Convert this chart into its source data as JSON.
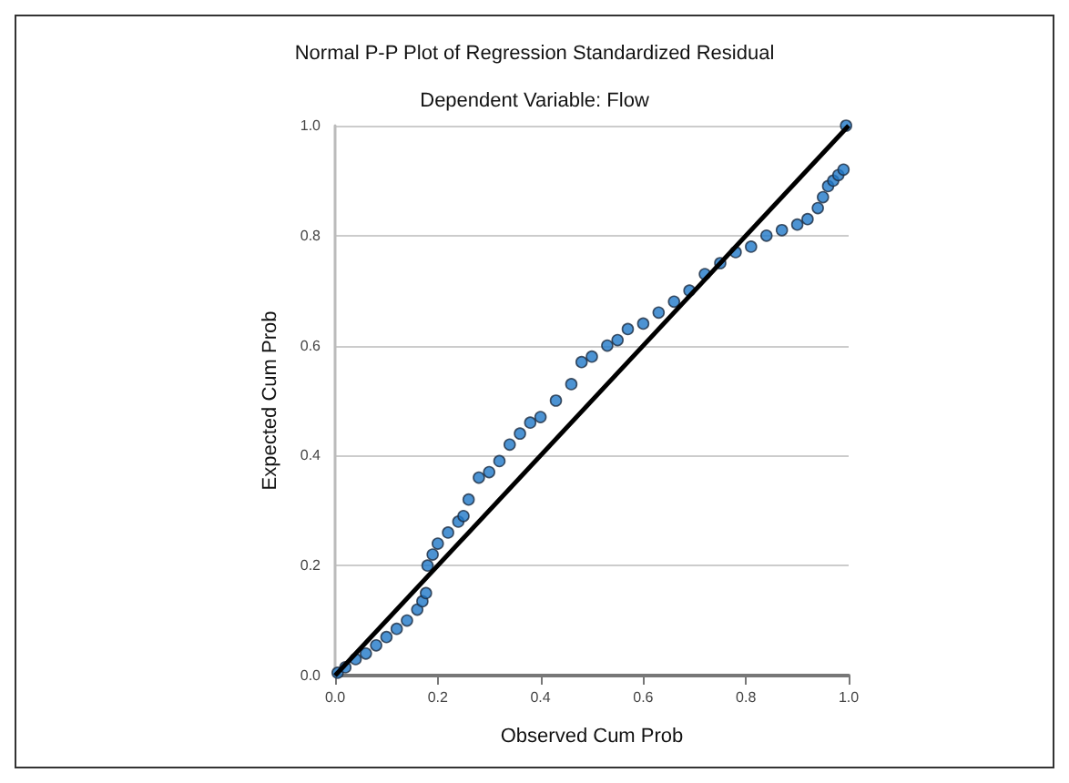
{
  "chart_data": {
    "type": "scatter",
    "title": "Normal P-P Plot of Regression Standardized Residual",
    "subtitle": "Dependent Variable: Flow",
    "xlabel": "Observed Cum Prob",
    "ylabel": "Expected Cum Prob",
    "xlim": [
      0,
      1
    ],
    "ylim": [
      0,
      1
    ],
    "xticks": [
      {
        "value": 0,
        "label": "0.0"
      },
      0.2,
      0.4,
      0.6,
      0.8,
      {
        "value": 1,
        "label": "1.0"
      }
    ],
    "yticks": [
      {
        "value": 0,
        "label": "0.0"
      },
      0.2,
      0.4,
      0.6,
      0.8,
      {
        "value": 1,
        "label": "1.0"
      }
    ],
    "grid": "y",
    "marker": "circle",
    "series": [
      {
        "color": "#1f78c8",
        "x": [
          0.005,
          0.02,
          0.04,
          0.06,
          0.08,
          0.1,
          0.12,
          0.14,
          0.16,
          0.17,
          0.177,
          0.18,
          0.19,
          0.2,
          0.22,
          0.24,
          0.25,
          0.26,
          0.28,
          0.3,
          0.32,
          0.34,
          0.36,
          0.38,
          0.4,
          0.43,
          0.46,
          0.48,
          0.5,
          0.53,
          0.55,
          0.57,
          0.6,
          0.63,
          0.66,
          0.69,
          0.72,
          0.75,
          0.78,
          0.81,
          0.84,
          0.87,
          0.9,
          0.92,
          0.94,
          0.95,
          0.96,
          0.97,
          0.98,
          0.99,
          0.995
        ],
        "values": [
          0.005,
          0.015,
          0.03,
          0.04,
          0.055,
          0.07,
          0.085,
          0.1,
          0.12,
          0.135,
          0.15,
          0.2,
          0.22,
          0.24,
          0.26,
          0.28,
          0.29,
          0.32,
          0.36,
          0.37,
          0.39,
          0.42,
          0.44,
          0.46,
          0.47,
          0.5,
          0.53,
          0.57,
          0.58,
          0.6,
          0.61,
          0.63,
          0.64,
          0.66,
          0.68,
          0.7,
          0.73,
          0.75,
          0.77,
          0.78,
          0.8,
          0.81,
          0.82,
          0.83,
          0.85,
          0.87,
          0.89,
          0.9,
          0.91,
          0.92,
          1.0
        ]
      },
      {
        "type": "line",
        "color": "#000000",
        "x": [
          0,
          1
        ],
        "values": [
          0,
          1
        ],
        "marker": "none",
        "line_style": "solid"
      }
    ]
  }
}
